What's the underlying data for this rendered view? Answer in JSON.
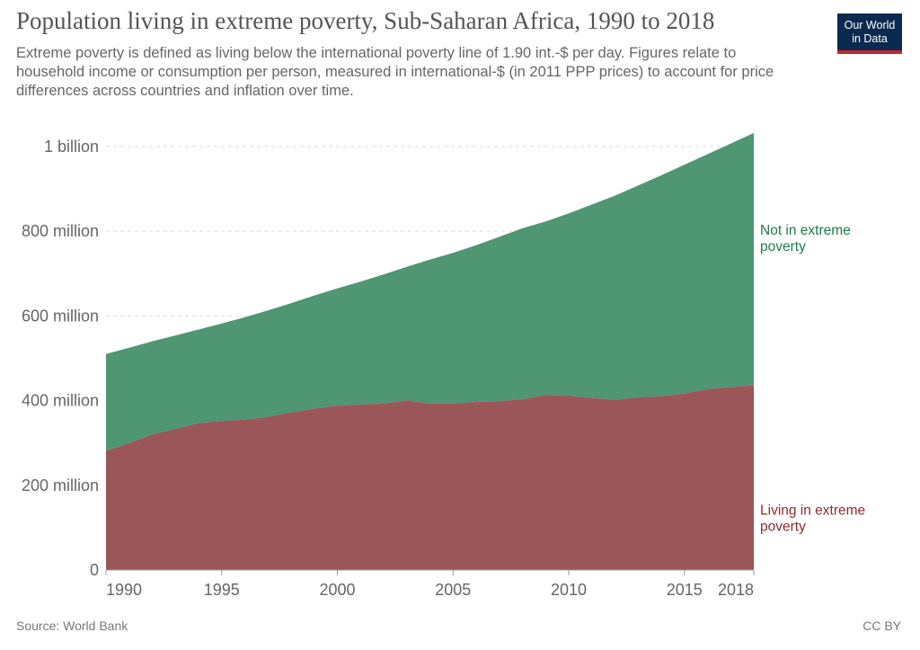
{
  "header": {
    "title": "Population living in extreme poverty, Sub-Saharan Africa, 1990 to 2018",
    "subtitle": "Extreme poverty is defined as living below the international poverty line of 1.90 int.-$ per day. Figures relate to household income or consumption per person, measured in international-$ (in 2011 PPP prices) to account for price differences across countries and inflation over time.",
    "logo_line1": "Our World",
    "logo_line2": "in Data"
  },
  "footer": {
    "source": "Source: World Bank",
    "license": "CC BY"
  },
  "colors": {
    "poverty": "#9b565a",
    "not_poverty": "#4f9673",
    "poverty_label": "#8d2a2e",
    "not_poverty_label": "#1f7a4b",
    "grid": "#dddddd",
    "axis": "#999999"
  },
  "chart_data": {
    "type": "area",
    "stacked": true,
    "x": [
      1990,
      1991,
      1992,
      1993,
      1994,
      1995,
      1996,
      1997,
      1998,
      1999,
      2000,
      2001,
      2002,
      2003,
      2004,
      2005,
      2006,
      2007,
      2008,
      2009,
      2010,
      2011,
      2012,
      2013,
      2014,
      2015,
      2016,
      2017,
      2018
    ],
    "series": [
      {
        "name": "Living in extreme poverty",
        "values": [
          281,
          300,
          320,
          333,
          347,
          352,
          355,
          362,
          372,
          381,
          388,
          391,
          393,
          401,
          393,
          393,
          397,
          399,
          403,
          413,
          412,
          406,
          402,
          408,
          410,
          417,
          427,
          432,
          436
        ]
      },
      {
        "name": "Not in extreme poverty",
        "values": [
          229,
          225,
          220,
          221,
          221,
          230,
          242,
          251,
          258,
          267,
          277,
          290,
          305,
          315,
          340,
          356,
          370,
          388,
          404,
          410,
          430,
          457,
          482,
          500,
          522,
          540,
          555,
          575,
          596
        ]
      }
    ],
    "xticks": [
      "1990",
      "1995",
      "2000",
      "2005",
      "2010",
      "2015",
      "2018"
    ],
    "yticks": [
      "0",
      "200 million",
      "400 million",
      "600 million",
      "800 million",
      "1 billion"
    ],
    "ytick_values": [
      0,
      200,
      400,
      600,
      800,
      1000
    ],
    "ylim": [
      0,
      1000
    ],
    "xlim": [
      1990,
      2018
    ],
    "grid": "horizontal dashed",
    "legend": "right, labels at series end"
  }
}
